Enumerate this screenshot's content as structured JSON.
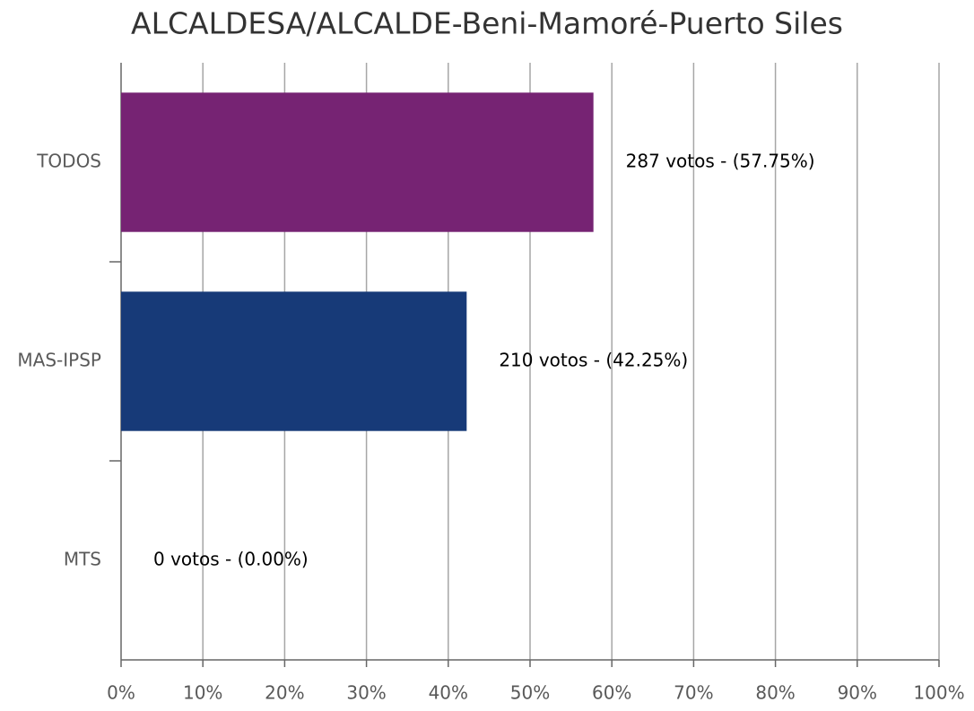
{
  "chart_data": {
    "type": "hbar",
    "title": "ALCALDESA/ALCALDE-Beni-Mamoré-Puerto Siles",
    "categories": [
      "TODOS",
      "MAS-IPSP",
      "MTS"
    ],
    "values": [
      57.75,
      42.25,
      0
    ],
    "value_labels": [
      "287 votos - (57.75%)",
      "210 votos - (42.25%)",
      "0 votos - (0.00%)"
    ],
    "colors": [
      "#762373",
      "#173a78",
      "#2e7d32"
    ],
    "xlim": [
      0,
      100
    ],
    "xticks": [
      {
        "value": 0,
        "label": "0%"
      },
      {
        "value": 10,
        "label": "10%"
      },
      {
        "value": 20,
        "label": "20%"
      },
      {
        "value": 30,
        "label": "30%"
      },
      {
        "value": 40,
        "label": "40%"
      },
      {
        "value": 50,
        "label": "50%"
      },
      {
        "value": 60,
        "label": "60%"
      },
      {
        "value": 70,
        "label": "70%"
      },
      {
        "value": 80,
        "label": "80%"
      },
      {
        "value": 90,
        "label": "90%"
      },
      {
        "value": 100,
        "label": "100%"
      }
    ],
    "grid": true
  }
}
